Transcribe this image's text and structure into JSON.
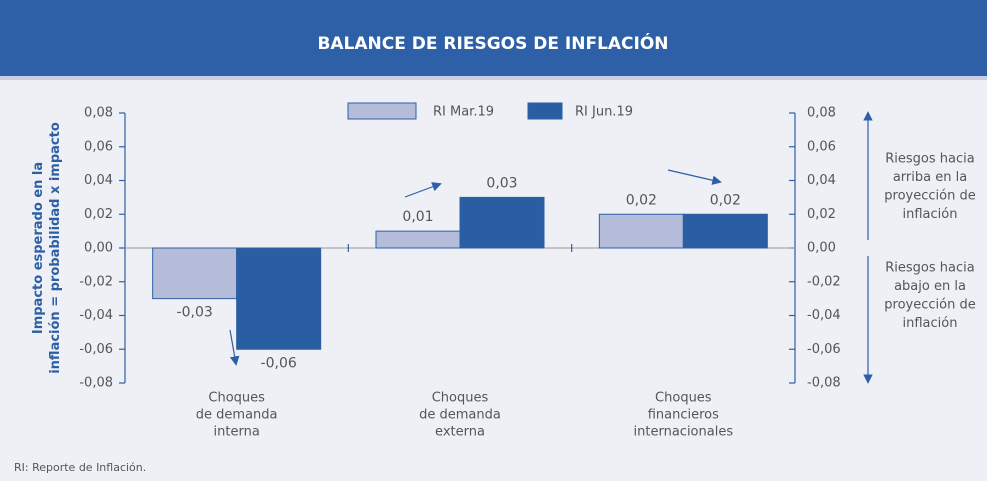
{
  "chart_data": {
    "type": "bar",
    "title": "BALANCE DE RIESGOS DE INFLACIÓN",
    "y_label": [
      "Impacto esperado en la",
      "inflación = probabilidad x impacto"
    ],
    "categories": [
      [
        "Choques",
        "de demanda",
        "interna"
      ],
      [
        "Choques",
        "de demanda",
        "externa"
      ],
      [
        "Choques",
        "financieros",
        "internacionales"
      ]
    ],
    "series": [
      {
        "name": "RI Mar.19",
        "color": "#b4bcd9",
        "values": [
          -0.03,
          0.01,
          0.02
        ],
        "value_labels": [
          "-0,03",
          "0,01",
          "0,02"
        ]
      },
      {
        "name": "RI Jun.19",
        "color": "#2a5ea3",
        "values": [
          -0.06,
          0.03,
          0.02
        ],
        "value_labels": [
          "-0,06",
          "0,03",
          "0,02"
        ]
      }
    ],
    "ylim": [
      -0.08,
      0.08
    ],
    "yticks": [
      {
        "value": 0.08,
        "label": "0,08"
      },
      {
        "value": 0.06,
        "label": "0,06"
      },
      {
        "value": 0.04,
        "label": "0,04"
      },
      {
        "value": 0.02,
        "label": "0,02"
      },
      {
        "value": 0,
        "label": "0,00"
      },
      {
        "value": -0.02,
        "label": "-0,02"
      },
      {
        "value": -0.04,
        "label": "-0,04"
      },
      {
        "value": -0.06,
        "label": "-0,06"
      },
      {
        "value": -0.08,
        "label": "-0,08"
      }
    ],
    "y2lim": [
      -0.08,
      0.08
    ],
    "y2ticks": [
      {
        "value": 0.08,
        "label": "0,08"
      },
      {
        "value": 0.06,
        "label": "0,06"
      },
      {
        "value": 0.04,
        "label": "0,04"
      },
      {
        "value": 0.02,
        "label": "0,02"
      },
      {
        "value": 0,
        "label": "0,00"
      },
      {
        "value": -0.02,
        "label": "-0,02"
      },
      {
        "value": -0.04,
        "label": "-0,04"
      },
      {
        "value": -0.06,
        "label": "-0,06"
      },
      {
        "value": -0.08,
        "label": "-0,08"
      }
    ],
    "annotations": {
      "up": [
        "Riesgos hacia",
        "arriba en la",
        "proyección de",
        "inflación"
      ],
      "down": [
        "Riesgos hacia",
        "abajo en la",
        "proyección de",
        "inflación"
      ]
    },
    "note": "RI: Reporte de Inflación."
  }
}
